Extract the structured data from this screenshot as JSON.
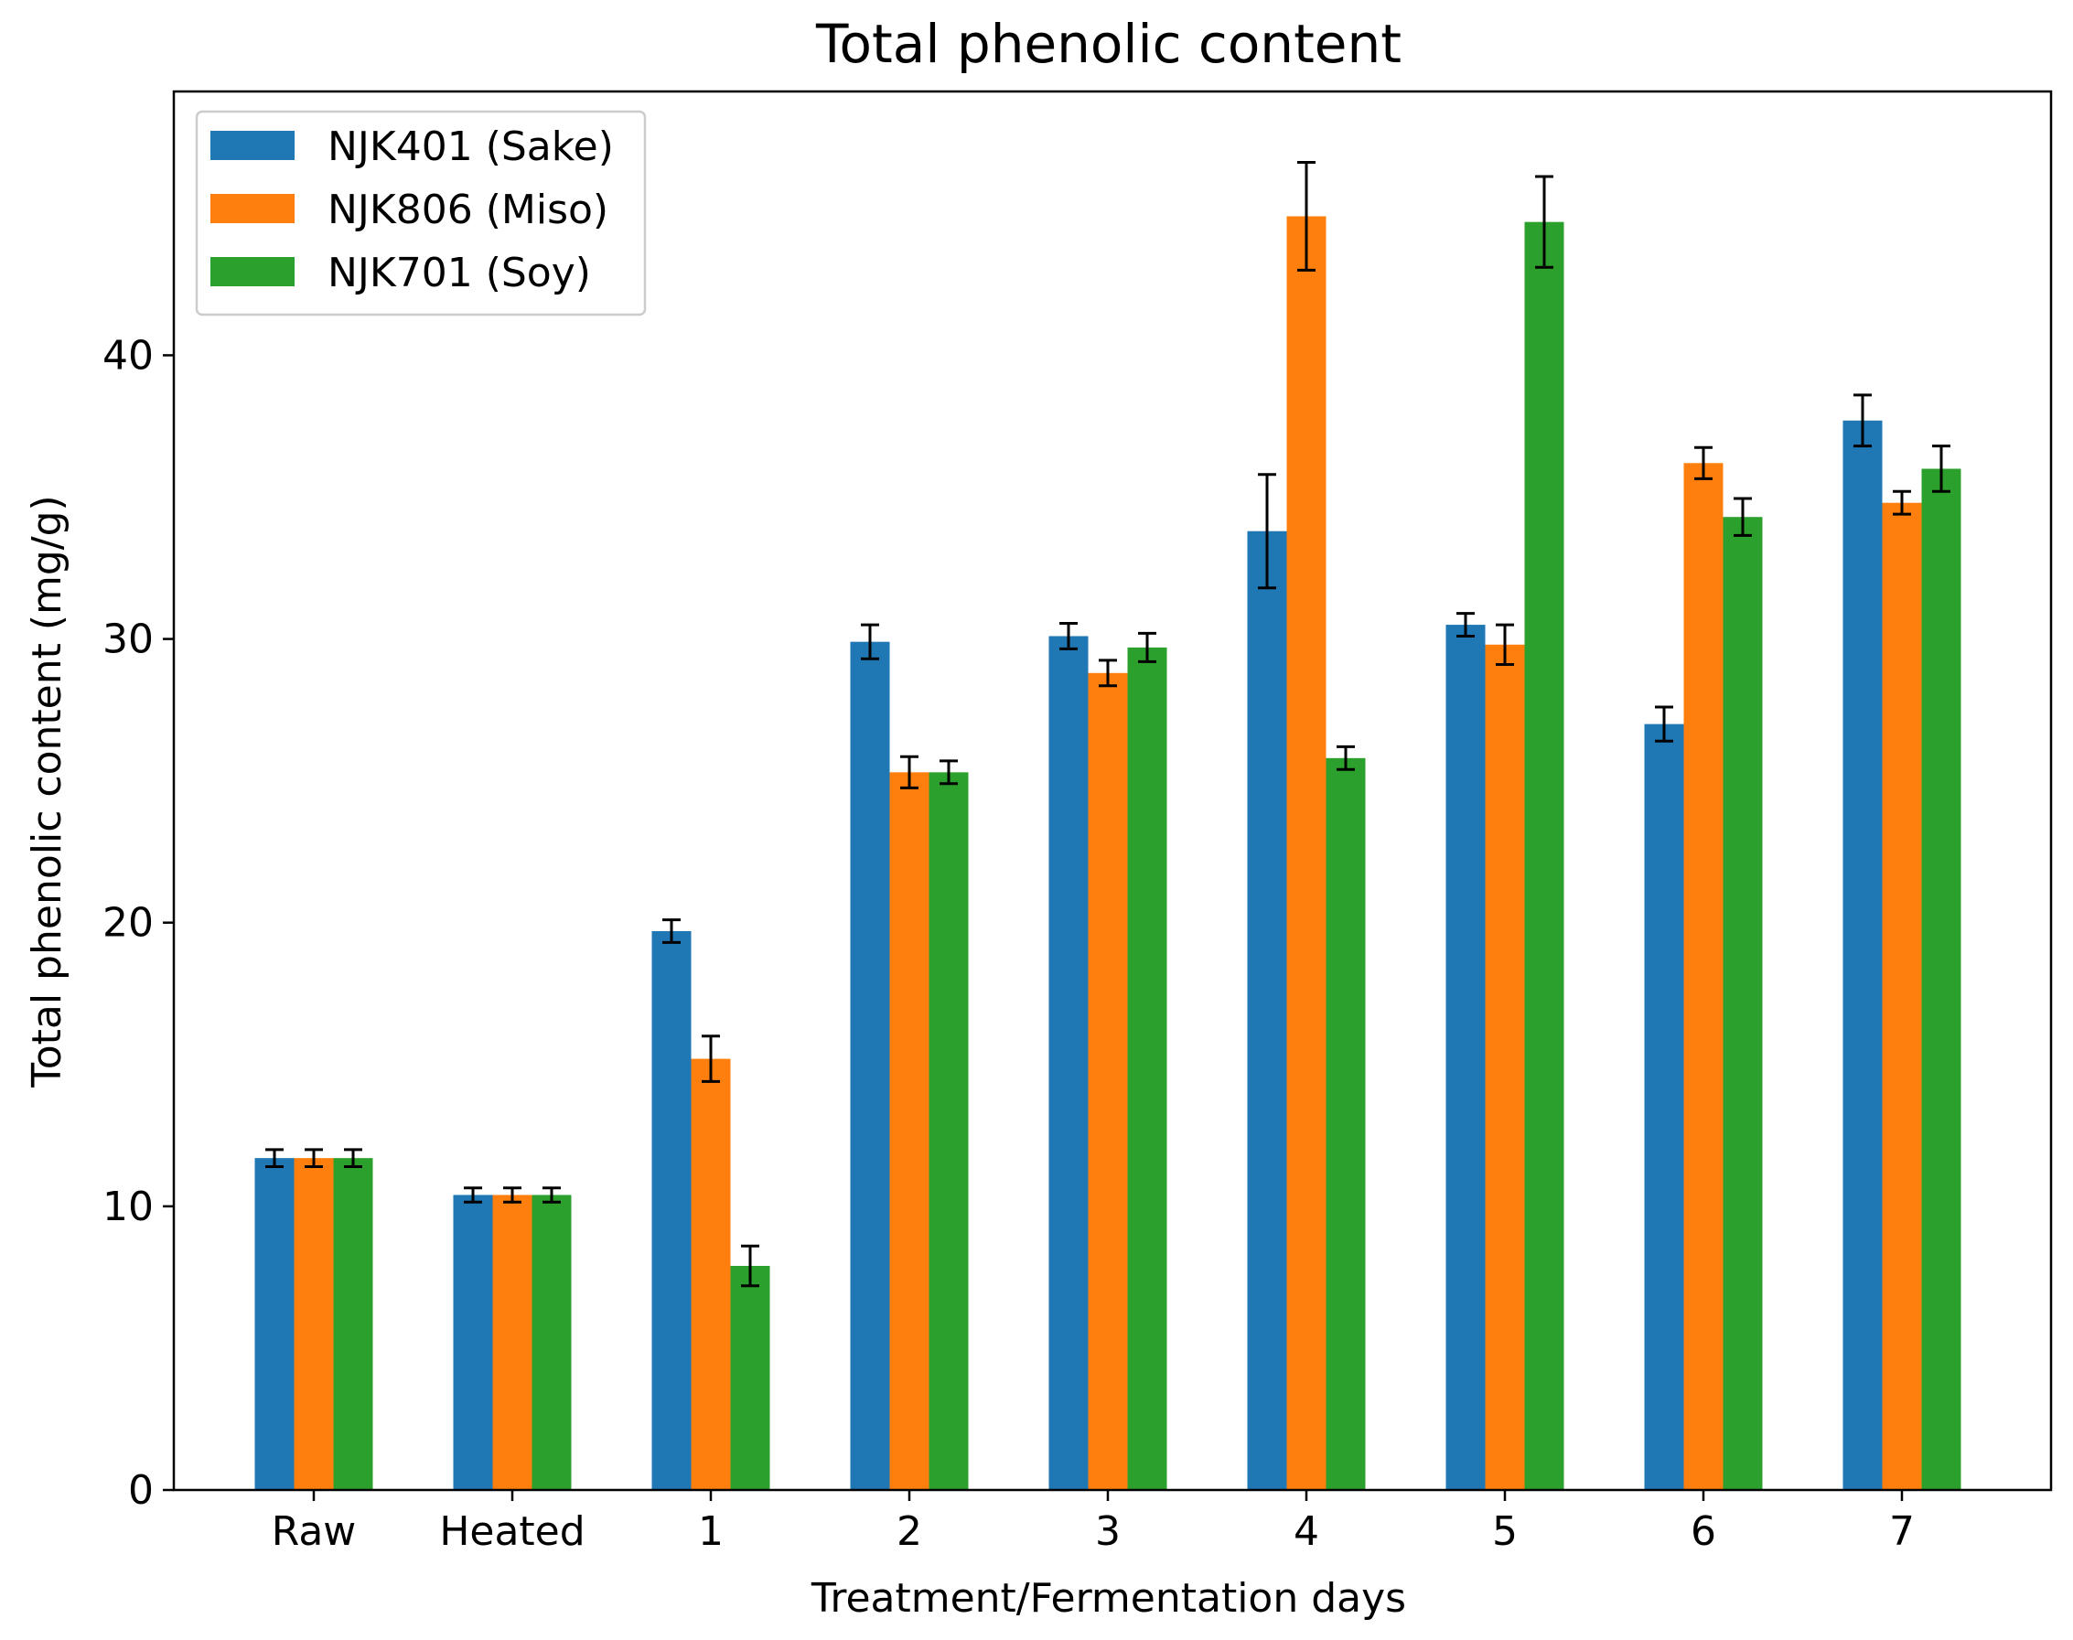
{
  "chart_data": {
    "type": "bar",
    "title": "Total phenolic content",
    "xlabel": "Treatment/Fermentation days",
    "ylabel": "Total phenolic content (mg/g)",
    "categories": [
      "Raw",
      "Heated",
      "1",
      "2",
      "3",
      "4",
      "5",
      "6",
      "7"
    ],
    "ylim": [
      0,
      49.3
    ],
    "yticks": [
      0,
      10,
      20,
      30,
      40
    ],
    "legend_position": "top-left",
    "series": [
      {
        "name": "NJK401 (Sake)",
        "color": "#1f77b4",
        "values": [
          11.7,
          10.4,
          19.7,
          29.9,
          30.1,
          33.8,
          30.5,
          27.0,
          37.7
        ],
        "errors": [
          0.3,
          0.25,
          0.4,
          0.6,
          0.45,
          2.0,
          0.4,
          0.6,
          0.9
        ]
      },
      {
        "name": "NJK806 (Miso)",
        "color": "#ff7f0e",
        "values": [
          11.7,
          10.4,
          15.2,
          25.3,
          28.8,
          44.9,
          29.8,
          36.2,
          34.8
        ],
        "errors": [
          0.3,
          0.25,
          0.8,
          0.55,
          0.45,
          1.9,
          0.7,
          0.55,
          0.4
        ]
      },
      {
        "name": "NJK701 (Soy)",
        "color": "#2ca02c",
        "values": [
          11.7,
          10.4,
          7.9,
          25.3,
          29.7,
          25.8,
          44.7,
          34.3,
          36.0
        ],
        "errors": [
          0.3,
          0.25,
          0.7,
          0.4,
          0.5,
          0.4,
          1.6,
          0.65,
          0.8
        ]
      }
    ]
  }
}
